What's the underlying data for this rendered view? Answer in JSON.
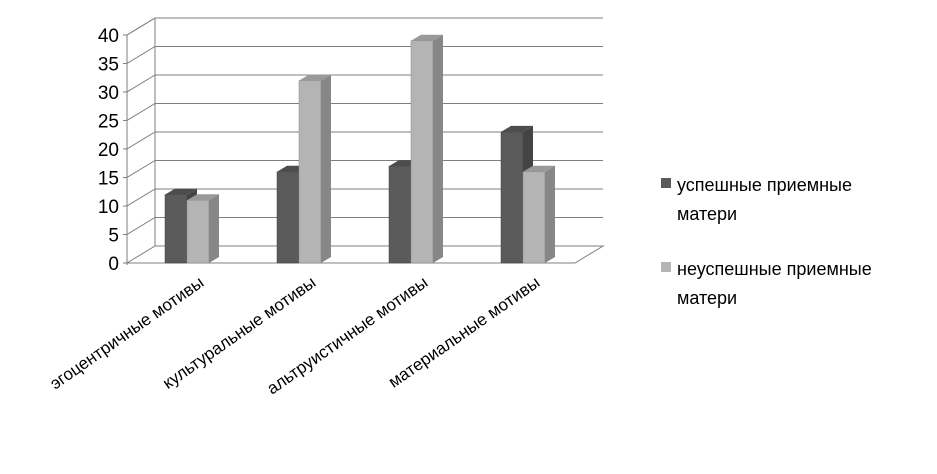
{
  "chart_data": {
    "type": "bar",
    "style": "3d-clustered-column",
    "categories": [
      "эгоцентричные мотивы",
      "культуральные мотивы",
      "альтруистичные  мотивы",
      "материальные мотивы"
    ],
    "series": [
      {
        "name": "успешные приемные матери",
        "values": [
          12,
          16,
          17,
          23
        ],
        "color": "#5a5a5a"
      },
      {
        "name": "неуспешные приемные матери",
        "values": [
          11,
          32,
          39,
          16
        ],
        "color": "#b4b4b4"
      }
    ],
    "ylim": [
      0,
      40
    ],
    "yticks": [
      "0",
      "5",
      "10",
      "15",
      "20",
      "25",
      "30",
      "35",
      "40"
    ],
    "grid": true,
    "legend_position": "right"
  },
  "legend": {
    "items": [
      {
        "line1": "успешные приемные",
        "line2": "матери"
      },
      {
        "line1": "неуспешные приемные",
        "line2": "матери"
      }
    ]
  }
}
